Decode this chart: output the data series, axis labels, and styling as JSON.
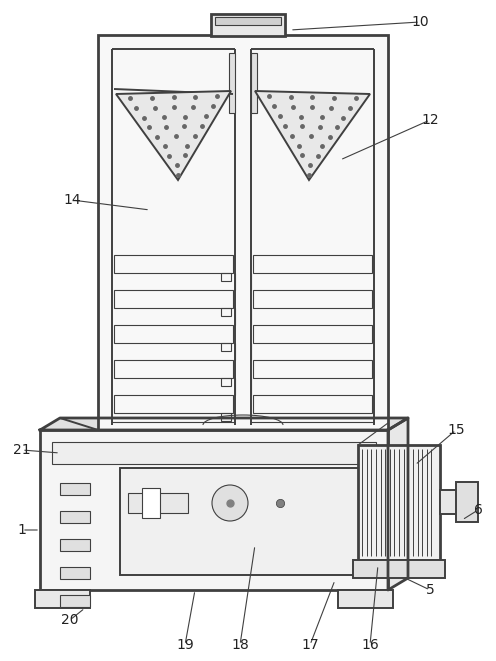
{
  "bg_color": "#ffffff",
  "line_color": "#404040",
  "dpi": 100,
  "figsize": [
    4.96,
    6.61
  ]
}
